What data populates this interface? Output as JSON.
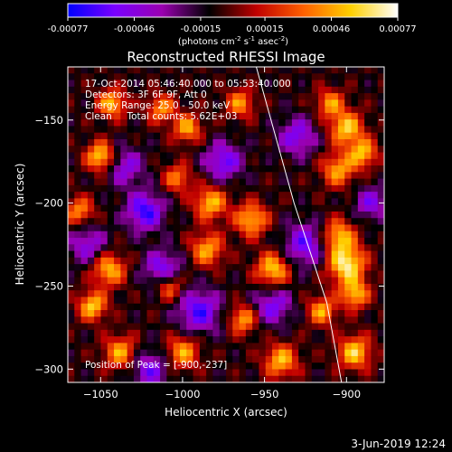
{
  "chart_data": {
    "type": "heatmap",
    "title": "Reconstructed RHESSI Image",
    "xlabel": "Heliocentric X (arcsec)",
    "ylabel": "Heliocentric Y (arcsec)",
    "xlim": [
      -1070,
      -877
    ],
    "ylim": [
      -308,
      -118
    ],
    "x_ticks": [
      -1050,
      -1000,
      -950,
      -900
    ],
    "y_ticks": [
      -300,
      -250,
      -200,
      -150
    ],
    "colorbar": {
      "range": [
        -0.00077,
        0.00077
      ],
      "tick_values": [
        -0.00077,
        -0.00046,
        -0.00015,
        0.00015,
        0.00046,
        0.00077
      ],
      "tick_labels": [
        "-0.00077",
        "-0.00046",
        "-0.00015",
        "0.00015",
        "0.00046",
        "0.00077"
      ],
      "unit_main": "(photons cm",
      "unit_parts": [
        "-2",
        " s",
        "-1",
        " asec",
        "-2",
        ")"
      ],
      "colormap": [
        "#0000ff",
        "#7a00ff",
        "#9a00b0",
        "#000000",
        "#c00000",
        "#ff6000",
        "#ffd000",
        "#ffffff"
      ]
    },
    "annotations": [
      "17-Oct-2014 05:46:40.000 to 05:53:40.000",
      "Detectors: 3F 6F 9F, Att 0",
      "Energy Range: 25.0 - 50.0 keV",
      "Clean     Total counts: 5.62E+03"
    ],
    "peak_label": "Position of Peak = [-900,-237]",
    "peak": [
      -900,
      -237
    ],
    "limb": [
      [
        -955,
        -118
      ],
      [
        -932,
        -200
      ],
      [
        -912,
        -260
      ],
      [
        -903,
        -308
      ]
    ],
    "hotspots": [
      {
        "x": -1043,
        "y": -140,
        "v": 0.0006,
        "r": 6
      },
      {
        "x": -1050,
        "y": -172,
        "v": 0.0007,
        "r": 6
      },
      {
        "x": -1063,
        "y": -205,
        "v": 0.0005,
        "r": 6
      },
      {
        "x": -1045,
        "y": -240,
        "v": 0.0006,
        "r": 7
      },
      {
        "x": -1055,
        "y": -262,
        "v": 0.00065,
        "r": 6
      },
      {
        "x": -1038,
        "y": -290,
        "v": 0.00055,
        "r": 7
      },
      {
        "x": -1013,
        "y": -143,
        "v": 0.0005,
        "r": 6
      },
      {
        "x": -997,
        "y": -155,
        "v": 0.00055,
        "r": 6
      },
      {
        "x": -1003,
        "y": -185,
        "v": 0.00045,
        "r": 6
      },
      {
        "x": -983,
        "y": -200,
        "v": 0.0006,
        "r": 7
      },
      {
        "x": -985,
        "y": -228,
        "v": 0.00055,
        "r": 7
      },
      {
        "x": -1008,
        "y": -250,
        "v": 0.0005,
        "r": 6
      },
      {
        "x": -1000,
        "y": -290,
        "v": 0.00055,
        "r": 7
      },
      {
        "x": -965,
        "y": -140,
        "v": 0.0005,
        "r": 6
      },
      {
        "x": -958,
        "y": -210,
        "v": 0.0006,
        "r": 7
      },
      {
        "x": -945,
        "y": -240,
        "v": 0.00065,
        "r": 7
      },
      {
        "x": -963,
        "y": -270,
        "v": 0.00055,
        "r": 6
      },
      {
        "x": -940,
        "y": -295,
        "v": 0.0006,
        "r": 7
      },
      {
        "x": -910,
        "y": -140,
        "v": 0.0005,
        "r": 6
      },
      {
        "x": -900,
        "y": -155,
        "v": 0.00065,
        "r": 7
      },
      {
        "x": -890,
        "y": -170,
        "v": 0.0006,
        "r": 6
      },
      {
        "x": -905,
        "y": -180,
        "v": 0.00055,
        "r": 7
      },
      {
        "x": -905,
        "y": -220,
        "v": 0.0006,
        "r": 7
      },
      {
        "x": -900,
        "y": -237,
        "v": 0.00077,
        "r": 8
      },
      {
        "x": -895,
        "y": -255,
        "v": 0.0006,
        "r": 6
      },
      {
        "x": -915,
        "y": -265,
        "v": 0.00055,
        "r": 6
      },
      {
        "x": -895,
        "y": -290,
        "v": 0.00065,
        "r": 7
      },
      {
        "x": -1023,
        "y": -205,
        "v": -0.0006,
        "r": 8
      },
      {
        "x": -1012,
        "y": -240,
        "v": -0.0005,
        "r": 8
      },
      {
        "x": -990,
        "y": -265,
        "v": -0.00055,
        "r": 9
      },
      {
        "x": -1035,
        "y": -178,
        "v": -0.0004,
        "r": 8
      },
      {
        "x": -975,
        "y": -175,
        "v": -0.0005,
        "r": 8
      },
      {
        "x": -930,
        "y": -160,
        "v": -0.00045,
        "r": 8
      },
      {
        "x": -925,
        "y": -225,
        "v": -0.0005,
        "r": 9
      },
      {
        "x": -945,
        "y": -262,
        "v": -0.00045,
        "r": 8
      },
      {
        "x": -1058,
        "y": -225,
        "v": -0.0004,
        "r": 8
      },
      {
        "x": -1020,
        "y": -300,
        "v": -0.00045,
        "r": 8
      },
      {
        "x": -885,
        "y": -200,
        "v": -0.0004,
        "r": 7
      }
    ],
    "grid": false
  },
  "footer": {
    "date": "3-Jun-2019 12:24"
  }
}
